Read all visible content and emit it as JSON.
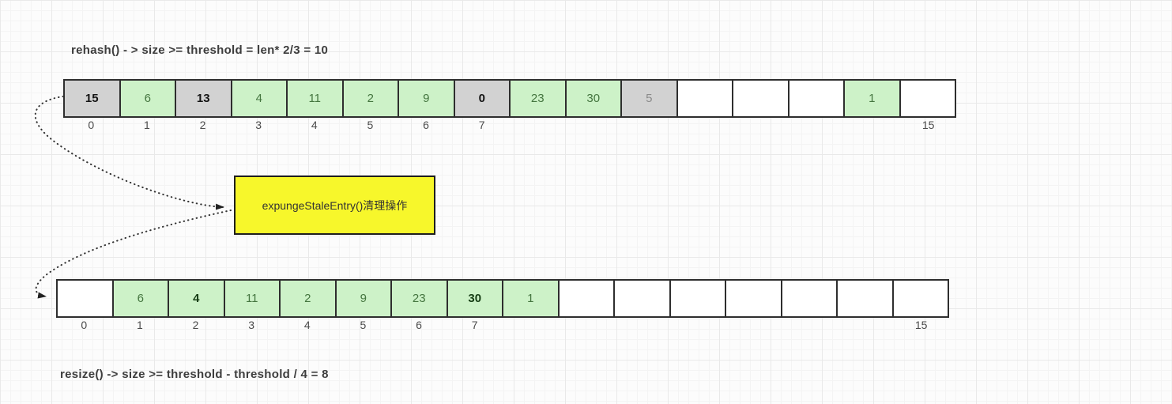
{
  "titles": {
    "top": "rehash() - > size >= threshold = len* 2/3 = 10",
    "bottom": "resize() -> size >= threshold - threshold / 4 = 8"
  },
  "note_box": {
    "label": "expungeStaleEntry()清理操作",
    "fill": "#f7f72b"
  },
  "colors": {
    "stale_cell": "#d2d2d2",
    "valid_cell": "#cdf2c8",
    "empty_cell": "#ffffff",
    "cell_border": "#2e2e2e",
    "valid_text": "#44753f",
    "arrow": "#333333",
    "note_fill": "#f7f72b"
  },
  "arrays": {
    "top": {
      "cells": [
        {
          "value": "15",
          "state": "stale",
          "bold": true,
          "index_label": "0"
        },
        {
          "value": "6",
          "state": "valid",
          "index_label": "1"
        },
        {
          "value": "13",
          "state": "stale",
          "bold": true,
          "index_label": "2"
        },
        {
          "value": "4",
          "state": "valid",
          "index_label": "3"
        },
        {
          "value": "11",
          "state": "valid",
          "index_label": "4"
        },
        {
          "value": "2",
          "state": "valid",
          "index_label": "5"
        },
        {
          "value": "9",
          "state": "valid",
          "index_label": "6"
        },
        {
          "value": "0",
          "state": "stale",
          "bold": true,
          "index_label": "7"
        },
        {
          "value": "23",
          "state": "valid",
          "index_label": ""
        },
        {
          "value": "30",
          "state": "valid",
          "index_label": ""
        },
        {
          "value": "5",
          "state": "stale",
          "dim": true,
          "index_label": ""
        },
        {
          "value": "",
          "state": "empty",
          "index_label": ""
        },
        {
          "value": "",
          "state": "empty",
          "index_label": ""
        },
        {
          "value": "",
          "state": "empty",
          "index_label": ""
        },
        {
          "value": "1",
          "state": "valid",
          "index_label": ""
        },
        {
          "value": "",
          "state": "empty",
          "index_label": "15"
        }
      ]
    },
    "bottom": {
      "cells": [
        {
          "value": "",
          "state": "empty",
          "index_label": "0"
        },
        {
          "value": "6",
          "state": "valid",
          "index_label": "1"
        },
        {
          "value": "4",
          "state": "valid",
          "bold": true,
          "index_label": "2"
        },
        {
          "value": "11",
          "state": "valid",
          "index_label": "3"
        },
        {
          "value": "2",
          "state": "valid",
          "index_label": "4"
        },
        {
          "value": "9",
          "state": "valid",
          "index_label": "5"
        },
        {
          "value": "23",
          "state": "valid",
          "index_label": "6"
        },
        {
          "value": "30",
          "state": "valid",
          "bold": true,
          "index_label": "7"
        },
        {
          "value": "1",
          "state": "valid",
          "index_label": ""
        },
        {
          "value": "",
          "state": "empty",
          "index_label": ""
        },
        {
          "value": "",
          "state": "empty",
          "index_label": ""
        },
        {
          "value": "",
          "state": "empty",
          "index_label": ""
        },
        {
          "value": "",
          "state": "empty",
          "index_label": ""
        },
        {
          "value": "",
          "state": "empty",
          "index_label": ""
        },
        {
          "value": "",
          "state": "empty",
          "index_label": ""
        },
        {
          "value": "",
          "state": "empty",
          "index_label": "15"
        }
      ]
    }
  }
}
